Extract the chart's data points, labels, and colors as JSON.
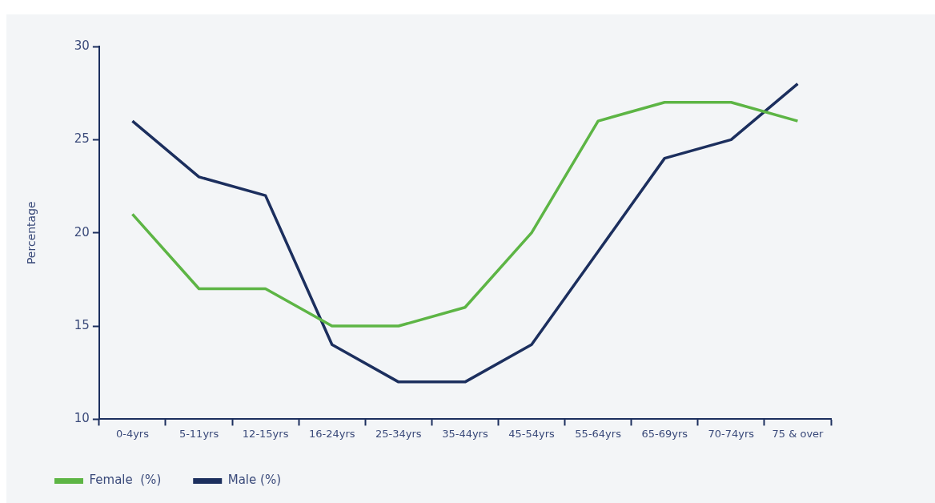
{
  "chart_data": {
    "type": "line",
    "ylabel": "Percentage",
    "categories": [
      "0-4yrs",
      "5-11yrs",
      "12-15yrs",
      "16-24yrs",
      "25-34yrs",
      "35-44yrs",
      "45-54yrs",
      "55-64yrs",
      "65-69yrs",
      "70-74yrs",
      "75 & over"
    ],
    "series": [
      {
        "name": "Female  (%)",
        "color": "#5db545",
        "values": [
          21,
          17,
          17,
          15,
          15,
          16,
          20,
          26,
          27,
          27,
          26
        ]
      },
      {
        "name": "Male (%)",
        "color": "#1c2f5e",
        "values": [
          26,
          23,
          22,
          14,
          12,
          12,
          14,
          19,
          24,
          25,
          28
        ]
      }
    ],
    "ylim": [
      10,
      30
    ],
    "yticks": [
      10,
      15,
      20,
      25,
      30
    ],
    "grid": false,
    "legend": "bottom left",
    "marker": "none",
    "line_style": "solid"
  }
}
